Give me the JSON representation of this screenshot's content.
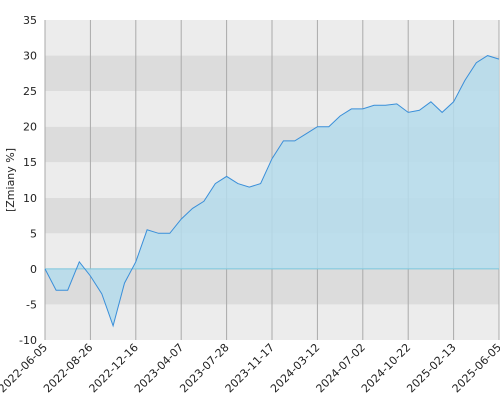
{
  "chart_data": {
    "type": "area",
    "y_label": "[Zmiany %]",
    "x": [
      "2022-06-05",
      "2022-06-25",
      "2022-07-16",
      "2022-08-06",
      "2022-08-26",
      "2022-09-23",
      "2022-10-21",
      "2022-11-18",
      "2022-12-16",
      "2023-01-13",
      "2023-02-10",
      "2023-03-10",
      "2023-04-07",
      "2023-05-05",
      "2023-06-02",
      "2023-06-30",
      "2023-07-28",
      "2023-08-25",
      "2023-09-22",
      "2023-10-20",
      "2023-11-17",
      "2023-12-16",
      "2024-01-14",
      "2024-02-12",
      "2024-03-12",
      "2024-04-09",
      "2024-05-07",
      "2024-06-04",
      "2024-07-02",
      "2024-07-30",
      "2024-08-27",
      "2024-09-24",
      "2024-10-22",
      "2024-11-19",
      "2024-12-18",
      "2025-01-15",
      "2025-02-13",
      "2025-03-13",
      "2025-04-10",
      "2025-05-08",
      "2025-06-05"
    ],
    "series": [
      {
        "color": "#3a8fd9",
        "fill": "#b5dcec",
        "values": [
          0,
          -3,
          -3,
          1,
          -1,
          -3.5,
          -8,
          -2,
          1,
          5.5,
          5,
          5,
          7,
          8.5,
          9.5,
          12,
          13,
          12,
          11.5,
          12,
          15.5,
          18,
          18,
          19,
          20,
          20,
          21.5,
          22.5,
          22.5,
          23,
          23,
          23.2,
          22,
          22.3,
          23.5,
          22,
          23.5,
          26.5,
          29,
          30,
          29.5
        ]
      }
    ],
    "xlim": [
      "2022-06-05",
      "2025-06-05"
    ],
    "xticks": [
      "2022-06-05",
      "2022-08-26",
      "2022-12-16",
      "2023-04-07",
      "2023-07-28",
      "2023-11-17",
      "2024-03-12",
      "2024-07-02",
      "2024-10-22",
      "2025-02-13",
      "2025-06-05"
    ],
    "ylim": [
      -10,
      35
    ],
    "yticks": [
      -10,
      -5,
      0,
      5,
      10,
      15,
      20,
      25,
      30,
      35
    ],
    "grid": true,
    "band_colors": [
      "#ececec",
      "#dcdcdc"
    ]
  }
}
